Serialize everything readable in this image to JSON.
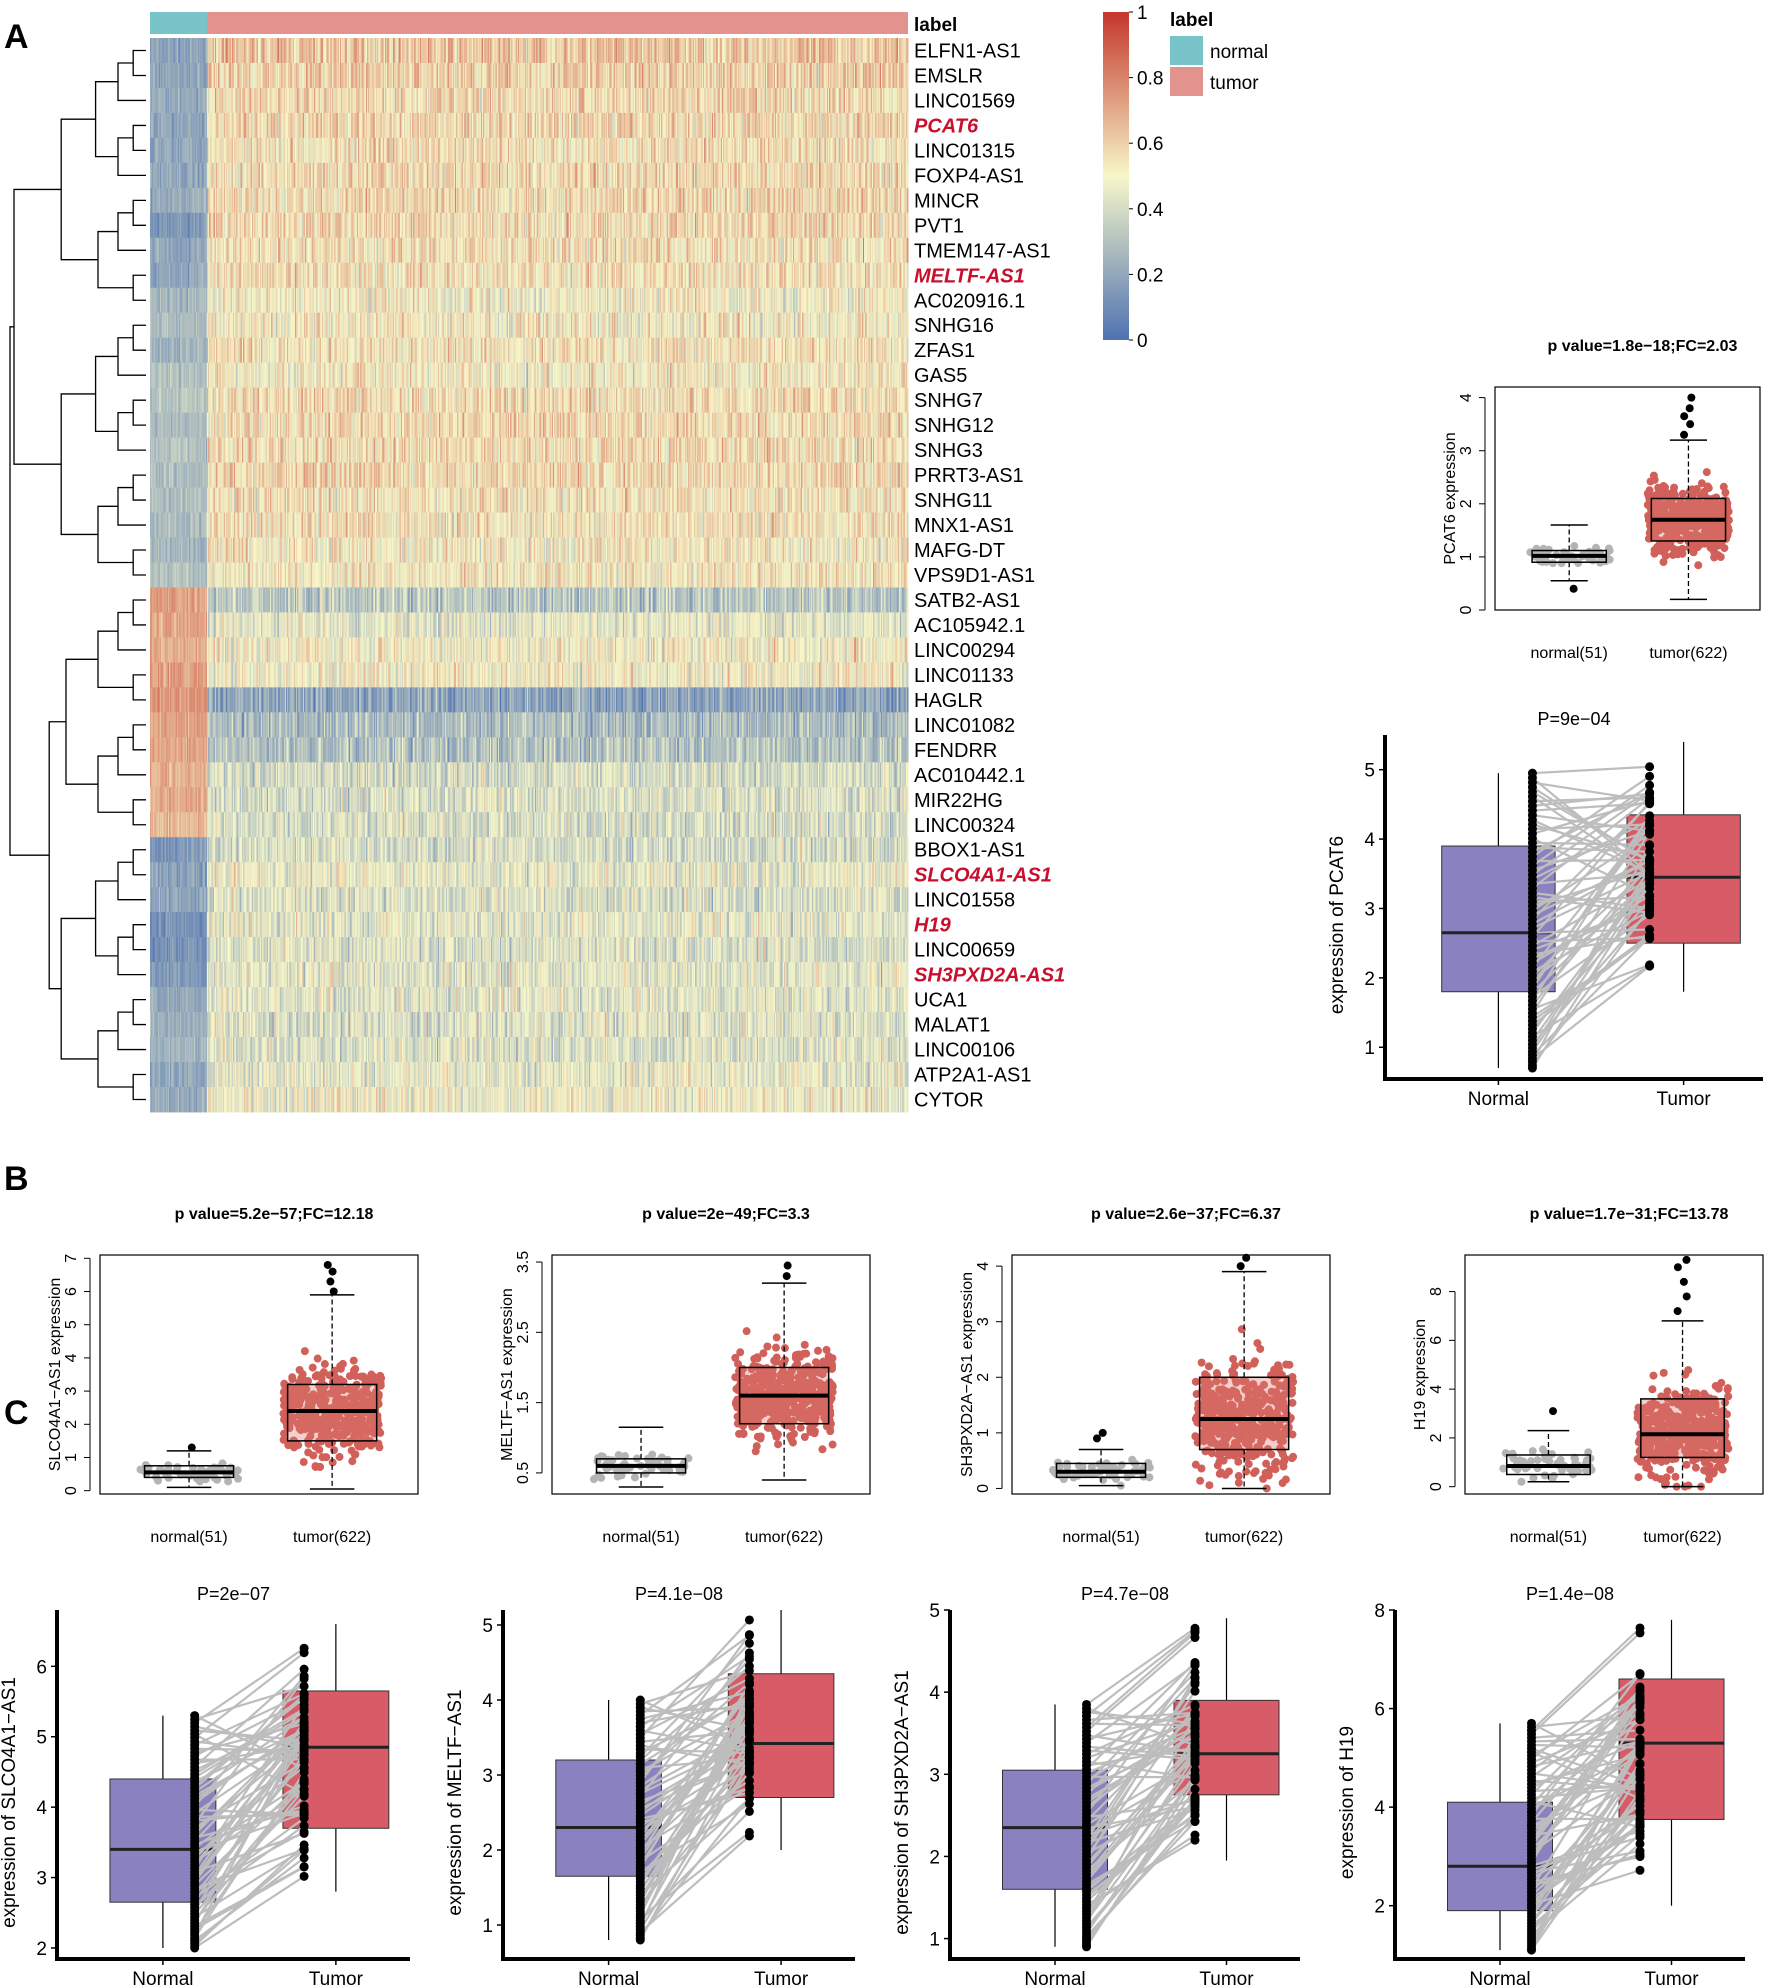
{
  "panel_labels": [
    "A",
    "B",
    "C"
  ],
  "chart_data": [
    {
      "type": "heatmap",
      "panel": "A",
      "column_annotation": {
        "title": "label",
        "groups": [
          {
            "name": "normal",
            "n": 51,
            "color": "#79c4c8"
          },
          {
            "name": "tumor",
            "n": 622,
            "color": "#e3938e"
          }
        ]
      },
      "color_scale": {
        "min": 0,
        "max": 1,
        "ticks": [
          "0",
          "0.2",
          "0.4",
          "0.6",
          "0.8",
          "1"
        ],
        "colors": [
          "#4f72b2",
          "#f7f7c9",
          "#c4362b"
        ]
      },
      "rows": [
        "ELFN1-AS1",
        "EMSLR",
        "LINC01569",
        "PCAT6",
        "LINC01315",
        "FOXP4-AS1",
        "MINCR",
        "PVT1",
        "TMEM147-AS1",
        "MELTF-AS1",
        "AC020916.1",
        "SNHG16",
        "ZFAS1",
        "GAS5",
        "SNHG7",
        "SNHG12",
        "SNHG3",
        "PRRT3-AS1",
        "SNHG11",
        "MNX1-AS1",
        "MAFG-DT",
        "VPS9D1-AS1",
        "SATB2-AS1",
        "AC105942.1",
        "LINC00294",
        "LINC01133",
        "HAGLR",
        "LINC01082",
        "FENDRR",
        "AC010442.1",
        "MIR22HG",
        "LINC00324",
        "BBOX1-AS1",
        "SLCO4A1-AS1",
        "LINC01558",
        "H19",
        "LINC00659",
        "SH3PXD2A-AS1",
        "UCA1",
        "MALAT1",
        "LINC00106",
        "ATP2A1-AS1",
        "CYTOR"
      ],
      "highlighted_rows": [
        "PCAT6",
        "MELTF-AS1",
        "SLCO4A1-AS1",
        "H19",
        "SH3PXD2A-AS1"
      ],
      "row_mean": {
        "normal": [
          0.18,
          0.2,
          0.22,
          0.2,
          0.22,
          0.2,
          0.22,
          0.15,
          0.2,
          0.2,
          0.25,
          0.28,
          0.25,
          0.3,
          0.3,
          0.28,
          0.3,
          0.28,
          0.3,
          0.28,
          0.25,
          0.3,
          0.72,
          0.72,
          0.7,
          0.72,
          0.75,
          0.72,
          0.7,
          0.68,
          0.68,
          0.66,
          0.15,
          0.18,
          0.2,
          0.12,
          0.12,
          0.15,
          0.2,
          0.22,
          0.25,
          0.2,
          0.22
        ],
        "tumor": [
          0.62,
          0.6,
          0.58,
          0.58,
          0.56,
          0.57,
          0.58,
          0.58,
          0.56,
          0.56,
          0.5,
          0.52,
          0.55,
          0.52,
          0.57,
          0.58,
          0.57,
          0.58,
          0.55,
          0.55,
          0.52,
          0.54,
          0.32,
          0.45,
          0.5,
          0.5,
          0.2,
          0.28,
          0.3,
          0.4,
          0.42,
          0.4,
          0.4,
          0.45,
          0.42,
          0.45,
          0.42,
          0.44,
          0.44,
          0.42,
          0.42,
          0.45,
          0.48
        ]
      }
    },
    {
      "type": "box",
      "panel": "A",
      "title": "p value=1.8e−18;FC=2.03",
      "ylabel": "PCAT6 expression",
      "categories": [
        "normal(51)",
        "tumor(622)"
      ],
      "ylim": [
        0,
        4.2
      ],
      "yticks": [
        0,
        1,
        2,
        3,
        4
      ],
      "boxes": [
        {
          "min": 0.55,
          "q1": 0.9,
          "median": 1.02,
          "q3": 1.12,
          "max": 1.6,
          "outliers": [
            0.4
          ]
        },
        {
          "min": 0.2,
          "q1": 1.3,
          "median": 1.7,
          "q3": 2.1,
          "max": 3.2,
          "outliers": [
            3.3,
            3.5,
            3.65,
            3.8,
            4.0
          ]
        }
      ]
    },
    {
      "type": "paired-box",
      "panel": "A",
      "title": "P=9e−04",
      "ylabel": "expression of PCAT6",
      "categories": [
        "Normal",
        "Tumor"
      ],
      "ylim": [
        0.6,
        5.5
      ],
      "yticks": [
        1,
        2,
        3,
        4,
        5
      ],
      "boxes": [
        {
          "min": 0.7,
          "q1": 1.8,
          "median": 2.65,
          "q3": 3.9,
          "max": 4.95
        },
        {
          "min": 1.8,
          "q1": 2.5,
          "median": 3.45,
          "q3": 4.35,
          "max": 5.4
        }
      ]
    },
    {
      "type": "box",
      "panel": "B",
      "title": "p value=5.2e−57;FC=12.18",
      "ylabel": "SLCO4A1−AS1 expression",
      "categories": [
        "normal(51)",
        "tumor(622)"
      ],
      "ylim": [
        -0.1,
        7.1
      ],
      "yticks": [
        0,
        1,
        2,
        3,
        4,
        5,
        6,
        7
      ],
      "boxes": [
        {
          "min": 0.1,
          "q1": 0.4,
          "median": 0.55,
          "q3": 0.75,
          "max": 1.2,
          "outliers": [
            1.3
          ]
        },
        {
          "min": 0.05,
          "q1": 1.5,
          "median": 2.4,
          "q3": 3.2,
          "max": 5.9,
          "outliers": [
            6.0,
            6.3,
            6.6,
            6.8
          ]
        }
      ]
    },
    {
      "type": "box",
      "panel": "B",
      "title": "p value=2e−49;FC=3.3",
      "ylabel": "MELTF−AS1 expression",
      "categories": [
        "normal(51)",
        "tumor(622)"
      ],
      "ylim": [
        0.2,
        3.6
      ],
      "yticks": [
        0.5,
        1.5,
        2.5,
        3.5
      ],
      "boxes": [
        {
          "min": 0.3,
          "q1": 0.5,
          "median": 0.6,
          "q3": 0.7,
          "max": 1.15,
          "outliers": []
        },
        {
          "min": 0.4,
          "q1": 1.2,
          "median": 1.6,
          "q3": 2.0,
          "max": 3.2,
          "outliers": [
            3.3,
            3.45
          ]
        }
      ]
    },
    {
      "type": "box",
      "panel": "B",
      "title": "p value=2.6e−37;FC=6.37",
      "ylabel": "SH3PXD2A−AS1 expression",
      "categories": [
        "normal(51)",
        "tumor(622)"
      ],
      "ylim": [
        -0.1,
        4.2
      ],
      "yticks": [
        0,
        1,
        2,
        3,
        4
      ],
      "boxes": [
        {
          "min": 0.05,
          "q1": 0.2,
          "median": 0.3,
          "q3": 0.45,
          "max": 0.7,
          "outliers": [
            0.9,
            1.0
          ]
        },
        {
          "min": 0.0,
          "q1": 0.7,
          "median": 1.25,
          "q3": 2.0,
          "max": 3.9,
          "outliers": [
            4.0,
            4.15
          ]
        }
      ]
    },
    {
      "type": "box",
      "panel": "B",
      "title": "p value=1.7e−31;FC=13.78",
      "ylabel": "H19 expression",
      "categories": [
        "normal(51)",
        "tumor(622)"
      ],
      "ylim": [
        -0.3,
        9.5
      ],
      "yticks": [
        0,
        2,
        4,
        6,
        8
      ],
      "boxes": [
        {
          "min": 0.2,
          "q1": 0.5,
          "median": 0.85,
          "q3": 1.3,
          "max": 2.3,
          "outliers": [
            3.1
          ]
        },
        {
          "min": 0.0,
          "q1": 1.2,
          "median": 2.15,
          "q3": 3.6,
          "max": 6.8,
          "outliers": [
            7.2,
            7.8,
            8.4,
            9.0,
            9.3
          ]
        }
      ]
    },
    {
      "type": "paired-box",
      "panel": "C",
      "title": "P=2e−07",
      "ylabel": "expression of SLCO4A1−AS1",
      "categories": [
        "Normal",
        "Tumor"
      ],
      "ylim": [
        1.9,
        6.8
      ],
      "yticks": [
        2,
        3,
        4,
        5,
        6
      ],
      "boxes": [
        {
          "min": 2.0,
          "q1": 2.65,
          "median": 3.4,
          "q3": 4.4,
          "max": 5.3
        },
        {
          "min": 2.8,
          "q1": 3.7,
          "median": 4.85,
          "q3": 5.65,
          "max": 6.6
        }
      ]
    },
    {
      "type": "paired-box",
      "panel": "C",
      "title": "P=4.1e−08",
      "ylabel": "expression of MELTF−AS1",
      "categories": [
        "Normal",
        "Tumor"
      ],
      "ylim": [
        0.6,
        5.2
      ],
      "yticks": [
        1,
        2,
        3,
        4,
        5
      ],
      "boxes": [
        {
          "min": 0.8,
          "q1": 1.65,
          "median": 2.3,
          "q3": 3.2,
          "max": 4.0
        },
        {
          "min": 2.0,
          "q1": 2.7,
          "median": 3.42,
          "q3": 4.35,
          "max": 5.2
        }
      ]
    },
    {
      "type": "paired-box",
      "panel": "C",
      "title": "P=4.7e−08",
      "ylabel": "expression of SH3PXD2A−AS1",
      "categories": [
        "Normal",
        "Tumor"
      ],
      "ylim": [
        0.8,
        5.0
      ],
      "yticks": [
        1,
        2,
        3,
        4,
        5
      ],
      "boxes": [
        {
          "min": 0.9,
          "q1": 1.6,
          "median": 2.35,
          "q3": 3.05,
          "max": 3.85
        },
        {
          "min": 1.95,
          "q1": 2.75,
          "median": 3.25,
          "q3": 3.9,
          "max": 4.9
        }
      ]
    },
    {
      "type": "paired-box",
      "panel": "C",
      "title": "P=1.4e−08",
      "ylabel": "expression of H19",
      "categories": [
        "Normal",
        "Tumor"
      ],
      "ylim": [
        1.0,
        8.0
      ],
      "yticks": [
        2,
        4,
        6,
        8
      ],
      "boxes": [
        {
          "min": 1.1,
          "q1": 1.9,
          "median": 2.8,
          "q3": 4.1,
          "max": 5.7
        },
        {
          "min": 2.0,
          "q1": 3.75,
          "median": 5.3,
          "q3": 6.6,
          "max": 7.8
        }
      ]
    }
  ],
  "colors": {
    "normal_annot": "#79c4c8",
    "tumor_annot": "#e3938e",
    "box_normal_points": "#b4b4b4",
    "box_tumor_points": "#d2605a",
    "box_tumor_fill": "#dd7770",
    "paired_normal": "#8a82c0",
    "paired_tumor": "#d85b68",
    "pair_lines": "#bdbdbd",
    "highlight": "#c8102e"
  }
}
